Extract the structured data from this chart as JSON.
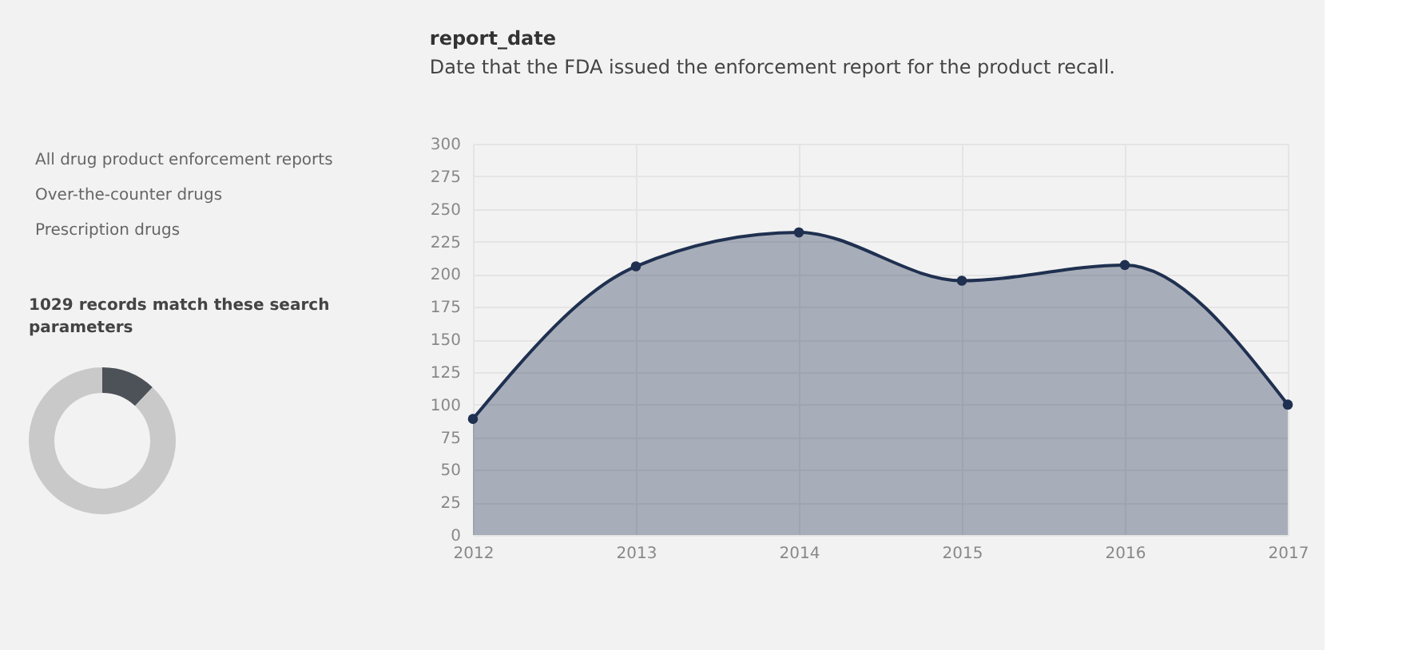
{
  "chart_data": [
    {
      "type": "donut",
      "title": "1029 records match these search parameters",
      "annotations": [
        "All drug product enforcement reports",
        "Over-the-counter drugs",
        "Prescription drugs"
      ],
      "categories": [
        null,
        null
      ],
      "values": [
        12,
        88
      ],
      "colors": [
        "#4d5158",
        "#c9c9c9"
      ],
      "legend": false
    },
    {
      "type": "area",
      "title": "report_date",
      "subtitle": "Date that the FDA issued the enforcement report for the product recall.",
      "categories": [
        "2012",
        "2013",
        "2014",
        "2015",
        "2016",
        "2017"
      ],
      "series": [
        {
          "color": "#1f3050",
          "values": [
            89,
            206,
            232,
            195,
            207,
            100
          ]
        }
      ],
      "ylim": [
        0,
        300
      ],
      "yticks": [
        0,
        25,
        50,
        75,
        100,
        125,
        150,
        175,
        200,
        225,
        250,
        275,
        300
      ],
      "grid": true,
      "marker": "circle",
      "line_style": "solid",
      "legend": false
    }
  ]
}
